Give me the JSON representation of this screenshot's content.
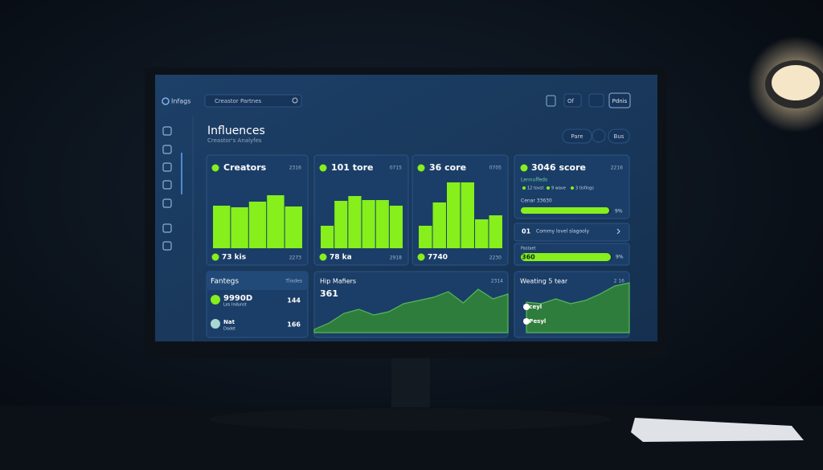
{
  "header": {
    "brand": "Infags",
    "search": "Creastor Partnes",
    "controls": [
      "Of",
      "Pdnis"
    ]
  },
  "page": {
    "title": "Influences",
    "subtitle": "Creastor's Analyfes",
    "actions": [
      "Pare",
      "Bus"
    ]
  },
  "bar_scale": [
    0,
    90
  ],
  "bar_panels": [
    {
      "title": "Creators",
      "corner": "2316",
      "values": [
        53,
        51,
        58,
        66,
        52
      ],
      "footer": "73 kis",
      "footer_right": "2273"
    },
    {
      "title": "101 tore",
      "corner": "0715",
      "values": [
        28,
        59,
        65,
        60,
        60,
        53
      ],
      "footer": "78 ka",
      "footer_right": "2918"
    },
    {
      "title": "36 core",
      "corner": "0705",
      "values": [
        28,
        57,
        82,
        82,
        36,
        41
      ],
      "footer": "7740",
      "footer_right": "2230"
    }
  ],
  "score_panel": {
    "title": "3046 score",
    "corner": "2216",
    "legend_title": "Lennuffeds",
    "legend": [
      "12 tovst",
      "9 wave",
      "3 tisfings"
    ],
    "meter_label": "Cenar 33630",
    "meter_value": "9%",
    "row_number": "01",
    "row_text": "Commy lovel slagooly",
    "meter2_label": "Pastaet",
    "meter2_text": "360",
    "meter2_value": "9%"
  },
  "list_panel": {
    "title": "Fantegs",
    "corner": "Tlisdes",
    "items": [
      {
        "name": "9990D",
        "sub": "Les Indunst",
        "value": "144"
      },
      {
        "name": "Nat",
        "sub": "Dadet",
        "value": "166"
      }
    ]
  },
  "area_scale": [
    0,
    70
  ],
  "area_panels": [
    {
      "title": "Hip Mafiers",
      "subtitle": "361",
      "corner": "2314",
      "values": [
        4,
        12,
        24,
        29,
        22,
        26,
        36,
        40,
        44,
        51,
        37,
        54,
        42,
        48
      ]
    },
    {
      "title": "Weating 5 tear",
      "corner": "2 16",
      "values": [
        38,
        36,
        42,
        36,
        40,
        48,
        58,
        62
      ],
      "items": [
        "2 ceyl",
        "2 Pesyl"
      ]
    }
  ]
}
